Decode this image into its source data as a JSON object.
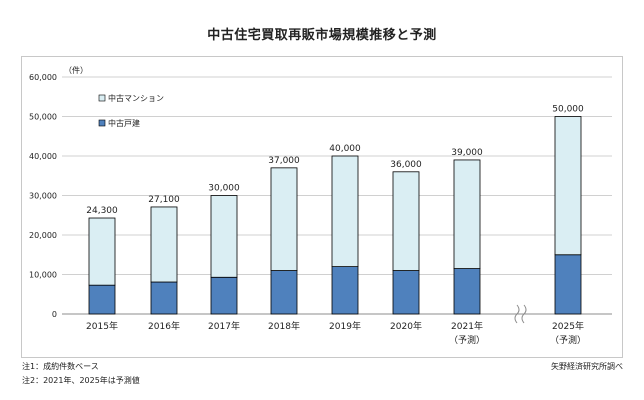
{
  "title": "中古住宅買取再販市場規模推移と予測",
  "notes": [
    "注1：成約件数ベース",
    "注2：2021年、2025年は予測値"
  ],
  "source": "矢野経済研究所調べ",
  "colors": {
    "mansion": "#daeef3",
    "kodate": "#4f81bd",
    "border": "#000000",
    "grid": "#d0d0d0"
  },
  "chart_data": {
    "type": "bar",
    "stacked": true,
    "unit_label": "（件）",
    "categories": [
      "2015年",
      "2016年",
      "2017年",
      "2018年",
      "2019年",
      "2020年",
      "2021年",
      "2025年"
    ],
    "category_sublabels": [
      "",
      "",
      "",
      "",
      "",
      "",
      "（予測）",
      "（予測）"
    ],
    "totals": [
      24300,
      27100,
      30000,
      37000,
      40000,
      36000,
      39000,
      50000
    ],
    "total_labels": [
      "24,300",
      "27,100",
      "30,000",
      "37,000",
      "40,000",
      "36,000",
      "39,000",
      "50,000"
    ],
    "series": [
      {
        "name": "中古戸建",
        "values": [
          7300,
          8100,
          9300,
          11000,
          12000,
          11000,
          11500,
          15000
        ]
      },
      {
        "name": "中古マンション",
        "values": [
          17000,
          19000,
          20700,
          26000,
          28000,
          25000,
          27500,
          35000
        ]
      }
    ],
    "ylim": [
      0,
      60000
    ],
    "yticks": [
      "0",
      "10,000",
      "20,000",
      "30,000",
      "40,000",
      "50,000",
      "60,000"
    ],
    "legend": [
      "中古マンション",
      "中古戸建"
    ],
    "legend_position": "top-left",
    "axis_break_between": [
      "2021年",
      "2025年"
    ],
    "grid": true
  }
}
